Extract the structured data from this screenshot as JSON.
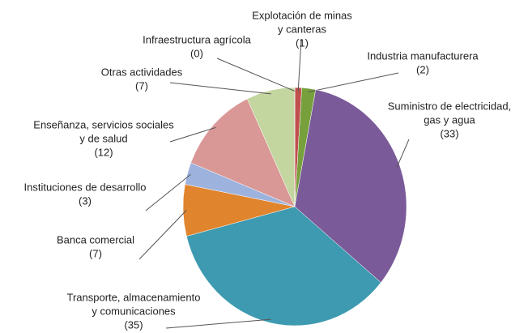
{
  "chart_data": {
    "type": "pie",
    "categories": [
      [
        "Explotación de minas",
        "y canteras"
      ],
      [
        "Industria manufacturera"
      ],
      [
        "Suministro de electricidad,",
        "gas y agua"
      ],
      [
        "Transporte, almacenamiento",
        "y comunicaciones"
      ],
      [
        "Banca comercial"
      ],
      [
        "Instituciones de desarrollo"
      ],
      [
        "Enseñanza, servicios sociales",
        "y de salud"
      ],
      [
        "Otras actividades"
      ],
      [
        "Infraestructura agrícola"
      ]
    ],
    "values": [
      1,
      2,
      33,
      35,
      7,
      3,
      12,
      7,
      0
    ],
    "value_labels": [
      "(1)",
      "(2)",
      "(33)",
      "(35)",
      "(7)",
      "(3)",
      "(12)",
      "(7)",
      "(0)"
    ],
    "colors": [
      "#c0504d",
      "#77a03c",
      "#7a5a99",
      "#3d9ab0",
      "#e0842d",
      "#9db3de",
      "#d99795",
      "#c4d69f",
      "#4f81bd"
    ]
  }
}
